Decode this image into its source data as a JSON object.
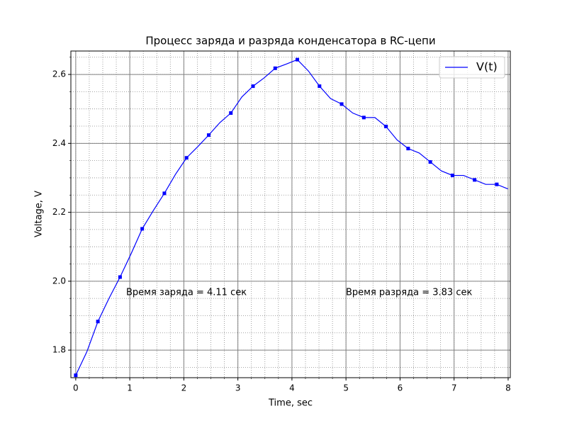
{
  "chart_data": {
    "type": "line",
    "title": "Процесс заряда и разряда конденсатора в RC-цепи",
    "x_label": "Time, sec",
    "y_label": "Voltage, V",
    "annotations": [
      "Время заряда = 4.11 сек",
      "Время разряда = 3.83 сек"
    ],
    "x": [
      0,
      0.205,
      0.41,
      0.615,
      0.82,
      1.025,
      1.23,
      1.435,
      1.64,
      1.845,
      2.05,
      2.255,
      2.46,
      2.665,
      2.87,
      3.075,
      3.28,
      3.485,
      3.69,
      3.895,
      4.1,
      4.305,
      4.51,
      4.715,
      4.92,
      5.125,
      5.33,
      5.535,
      5.74,
      5.945,
      6.15,
      6.355,
      6.56,
      6.765,
      6.97,
      7.175,
      7.38,
      7.585,
      7.79,
      7.995
    ],
    "series": [
      {
        "name": "V(t)",
        "color": "#0000ff",
        "marker_every": 2,
        "values": [
          1.727,
          1.795,
          1.883,
          1.95,
          2.012,
          2.08,
          2.152,
          2.205,
          2.255,
          2.31,
          2.358,
          2.39,
          2.424,
          2.46,
          2.488,
          2.535,
          2.566,
          2.59,
          2.618,
          2.63,
          2.643,
          2.61,
          2.566,
          2.53,
          2.514,
          2.488,
          2.475,
          2.475,
          2.449,
          2.41,
          2.385,
          2.372,
          2.346,
          2.32,
          2.307,
          2.307,
          2.294,
          2.281,
          2.281,
          2.268
        ]
      }
    ],
    "xlim": [
      -0.09,
      8.04
    ],
    "ylim": [
      1.72,
      2.668
    ],
    "xticks": [
      0,
      1,
      2,
      3,
      4,
      5,
      6,
      7,
      8
    ],
    "yticks": [
      {
        "value": 1.8,
        "label": "1.8"
      },
      {
        "value": 2.0,
        "label": "2.0"
      },
      {
        "value": 2.2,
        "label": "2.2"
      },
      {
        "value": 2.4,
        "label": "2.4"
      },
      {
        "value": 2.6,
        "label": "2.6"
      }
    ],
    "grid": true,
    "minor_grid": {
      "x": 0.25,
      "y": 0.05
    },
    "legend": "upper right"
  }
}
